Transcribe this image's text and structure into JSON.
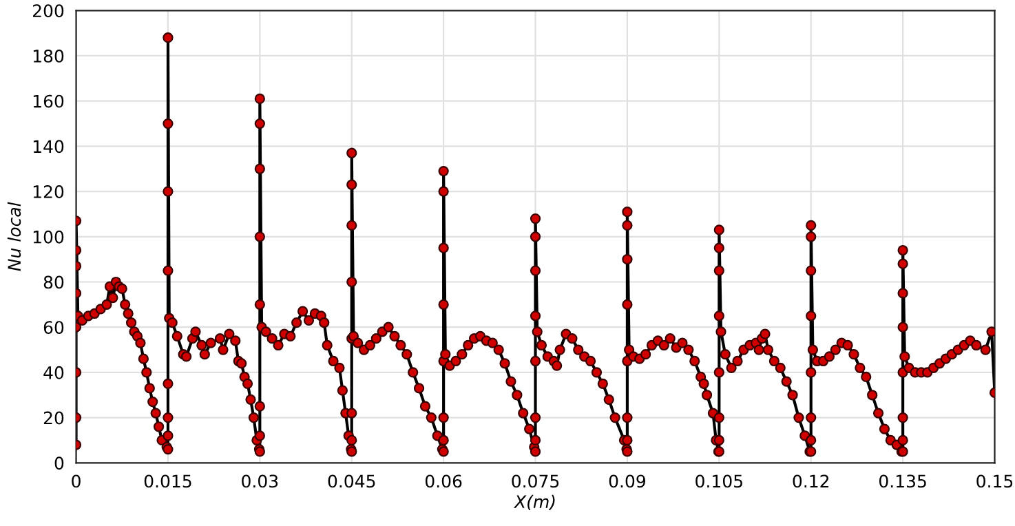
{
  "chart_data": {
    "type": "line",
    "xlabel": "X(m)",
    "ylabel": "Nu local",
    "x": [
      0,
      0,
      0,
      0,
      0,
      0,
      0,
      0,
      0.0003,
      0.001,
      0.002,
      0.003,
      0.004,
      0.005,
      0.0055,
      0.006,
      0.0065,
      0.007,
      0.0075,
      0.008,
      0.0085,
      0.009,
      0.0095,
      0.01,
      0.0105,
      0.011,
      0.0115,
      0.012,
      0.0125,
      0.013,
      0.0135,
      0.014,
      0.0148,
      0.015,
      0.015,
      0.015,
      0.015,
      0.015,
      0.015,
      0.015,
      0.015,
      0.0152,
      0.0157,
      0.0165,
      0.0175,
      0.018,
      0.019,
      0.0195,
      0.0205,
      0.021,
      0.022,
      0.0235,
      0.024,
      0.025,
      0.026,
      0.0265,
      0.027,
      0.0275,
      0.028,
      0.0285,
      0.029,
      0.0295,
      0.0299,
      0.03,
      0.03,
      0.03,
      0.03,
      0.03,
      0.03,
      0.03,
      0.03,
      0.0303,
      0.031,
      0.032,
      0.033,
      0.034,
      0.035,
      0.036,
      0.037,
      0.038,
      0.039,
      0.04,
      0.0405,
      0.041,
      0.042,
      0.043,
      0.0435,
      0.044,
      0.0445,
      0.0449,
      0.045,
      0.045,
      0.045,
      0.045,
      0.045,
      0.045,
      0.045,
      0.045,
      0.0453,
      0.046,
      0.047,
      0.048,
      0.049,
      0.05,
      0.051,
      0.052,
      0.053,
      0.054,
      0.055,
      0.056,
      0.057,
      0.058,
      0.059,
      0.0598,
      0.06,
      0.06,
      0.06,
      0.06,
      0.06,
      0.06,
      0.06,
      0.06,
      0.0603,
      0.061,
      0.062,
      0.063,
      0.064,
      0.065,
      0.066,
      0.067,
      0.068,
      0.069,
      0.07,
      0.071,
      0.072,
      0.073,
      0.074,
      0.0748,
      0.075,
      0.075,
      0.075,
      0.075,
      0.075,
      0.075,
      0.075,
      0.075,
      0.0753,
      0.076,
      0.077,
      0.078,
      0.0785,
      0.079,
      0.08,
      0.081,
      0.082,
      0.083,
      0.084,
      0.085,
      0.086,
      0.087,
      0.088,
      0.0895,
      0.0899,
      0.09,
      0.09,
      0.09,
      0.09,
      0.09,
      0.09,
      0.09,
      0.09,
      0.0903,
      0.091,
      0.092,
      0.093,
      0.094,
      0.095,
      0.096,
      0.097,
      0.098,
      0.099,
      0.1,
      0.101,
      0.102,
      0.1025,
      0.103,
      0.104,
      0.1045,
      0.1049,
      0.105,
      0.105,
      0.105,
      0.105,
      0.105,
      0.105,
      0.105,
      0.105,
      0.1053,
      0.106,
      0.107,
      0.108,
      0.109,
      0.11,
      0.111,
      0.1115,
      0.112,
      0.1125,
      0.113,
      0.114,
      0.115,
      0.116,
      0.117,
      0.118,
      0.119,
      0.1198,
      0.12,
      0.12,
      0.12,
      0.12,
      0.12,
      0.12,
      0.12,
      0.12,
      0.1203,
      0.121,
      0.122,
      0.123,
      0.124,
      0.125,
      0.126,
      0.127,
      0.128,
      0.129,
      0.13,
      0.131,
      0.132,
      0.133,
      0.134,
      0.1348,
      0.135,
      0.135,
      0.135,
      0.135,
      0.135,
      0.135,
      0.135,
      0.135,
      0.1353,
      0.136,
      0.137,
      0.138,
      0.139,
      0.14,
      0.141,
      0.142,
      0.143,
      0.144,
      0.145,
      0.146,
      0.147,
      0.1485,
      0.1495,
      0.15
    ],
    "series": [
      {
        "color": "#000000",
        "marker": "none",
        "values": [
          8,
          20,
          40,
          60,
          75,
          87,
          94,
          107,
          65,
          63,
          65,
          66,
          68,
          70,
          78,
          73,
          80,
          78,
          77,
          70,
          66,
          62,
          58,
          56,
          53,
          46,
          40,
          33,
          27,
          22,
          16,
          10,
          7,
          6,
          12,
          20,
          35,
          85,
          120,
          150,
          188,
          64,
          62,
          56,
          48,
          47,
          55,
          58,
          52,
          48,
          53,
          55,
          50,
          57,
          54,
          45,
          44,
          38,
          35,
          28,
          20,
          10,
          6,
          5,
          12,
          25,
          70,
          100,
          130,
          150,
          161,
          60,
          58,
          55,
          52,
          57,
          56,
          62,
          67,
          63,
          66,
          65,
          62,
          52,
          45,
          42,
          32,
          22,
          12,
          6,
          5,
          10,
          22,
          55,
          80,
          105,
          123,
          137,
          56,
          53,
          50,
          52,
          55,
          58,
          60,
          56,
          52,
          48,
          40,
          33,
          25,
          20,
          12,
          6,
          5,
          10,
          20,
          45,
          70,
          95,
          120,
          129,
          48,
          43,
          45,
          48,
          52,
          55,
          56,
          54,
          53,
          50,
          44,
          36,
          30,
          22,
          15,
          7,
          5,
          10,
          20,
          45,
          65,
          85,
          100,
          108,
          58,
          52,
          47,
          45,
          43,
          50,
          57,
          55,
          50,
          47,
          45,
          40,
          35,
          28,
          20,
          10,
          6,
          5,
          10,
          20,
          45,
          70,
          90,
          105,
          111,
          50,
          47,
          46,
          48,
          52,
          54,
          52,
          55,
          51,
          53,
          50,
          45,
          38,
          35,
          30,
          22,
          10,
          5,
          5,
          10,
          20,
          40,
          65,
          85,
          95,
          103,
          58,
          48,
          42,
          45,
          50,
          52,
          53,
          50,
          55,
          57,
          50,
          45,
          42,
          36,
          30,
          20,
          12,
          5,
          5,
          10,
          20,
          40,
          65,
          85,
          100,
          105,
          50,
          45,
          45,
          47,
          50,
          53,
          52,
          48,
          42,
          38,
          30,
          22,
          15,
          10,
          8,
          5,
          5,
          10,
          20,
          40,
          60,
          75,
          88,
          94,
          47,
          42,
          40,
          40,
          40,
          42,
          44,
          46,
          48,
          50,
          52,
          54,
          52,
          50,
          58,
          31
        ]
      },
      {
        "type": "scatter",
        "color": "#d00000",
        "marker": "circle",
        "values": [
          8,
          20,
          40,
          60,
          75,
          87,
          94,
          107,
          65,
          63,
          65,
          66,
          68,
          70,
          78,
          73,
          80,
          78,
          77,
          70,
          66,
          62,
          58,
          56,
          53,
          46,
          40,
          33,
          27,
          22,
          16,
          10,
          7,
          6,
          12,
          20,
          35,
          85,
          120,
          150,
          188,
          64,
          62,
          56,
          48,
          47,
          55,
          58,
          52,
          48,
          53,
          55,
          50,
          57,
          54,
          45,
          44,
          38,
          35,
          28,
          20,
          10,
          6,
          5,
          12,
          25,
          70,
          100,
          130,
          150,
          161,
          60,
          58,
          55,
          52,
          57,
          56,
          62,
          67,
          63,
          66,
          65,
          62,
          52,
          45,
          42,
          32,
          22,
          12,
          6,
          5,
          10,
          22,
          55,
          80,
          105,
          123,
          137,
          56,
          53,
          50,
          52,
          55,
          58,
          60,
          56,
          52,
          48,
          40,
          33,
          25,
          20,
          12,
          6,
          5,
          10,
          20,
          45,
          70,
          95,
          120,
          129,
          48,
          43,
          45,
          48,
          52,
          55,
          56,
          54,
          53,
          50,
          44,
          36,
          30,
          22,
          15,
          7,
          5,
          10,
          20,
          45,
          65,
          85,
          100,
          108,
          58,
          52,
          47,
          45,
          43,
          50,
          57,
          55,
          50,
          47,
          45,
          40,
          35,
          28,
          20,
          10,
          6,
          5,
          10,
          20,
          45,
          70,
          90,
          105,
          111,
          50,
          47,
          46,
          48,
          52,
          54,
          52,
          55,
          51,
          53,
          50,
          45,
          38,
          35,
          30,
          22,
          10,
          5,
          5,
          10,
          20,
          40,
          65,
          85,
          95,
          103,
          58,
          48,
          42,
          45,
          50,
          52,
          53,
          50,
          55,
          57,
          50,
          45,
          42,
          36,
          30,
          20,
          12,
          5,
          5,
          10,
          20,
          40,
          65,
          85,
          100,
          105,
          50,
          45,
          45,
          47,
          50,
          53,
          52,
          48,
          42,
          38,
          30,
          22,
          15,
          10,
          8,
          5,
          5,
          10,
          20,
          40,
          60,
          75,
          88,
          94,
          47,
          42,
          40,
          40,
          40,
          42,
          44,
          46,
          48,
          50,
          52,
          54,
          52,
          50,
          58,
          31
        ]
      }
    ],
    "xlim": [
      0,
      0.15
    ],
    "xticks": [
      0,
      0.015,
      0.03,
      0.045,
      0.06,
      0.075,
      0.09,
      0.105,
      0.12,
      0.135,
      0.15
    ],
    "ylim": [
      0,
      200
    ],
    "yticks": [
      0,
      20,
      40,
      60,
      80,
      100,
      120,
      140,
      160,
      180,
      200
    ],
    "grid": true
  }
}
